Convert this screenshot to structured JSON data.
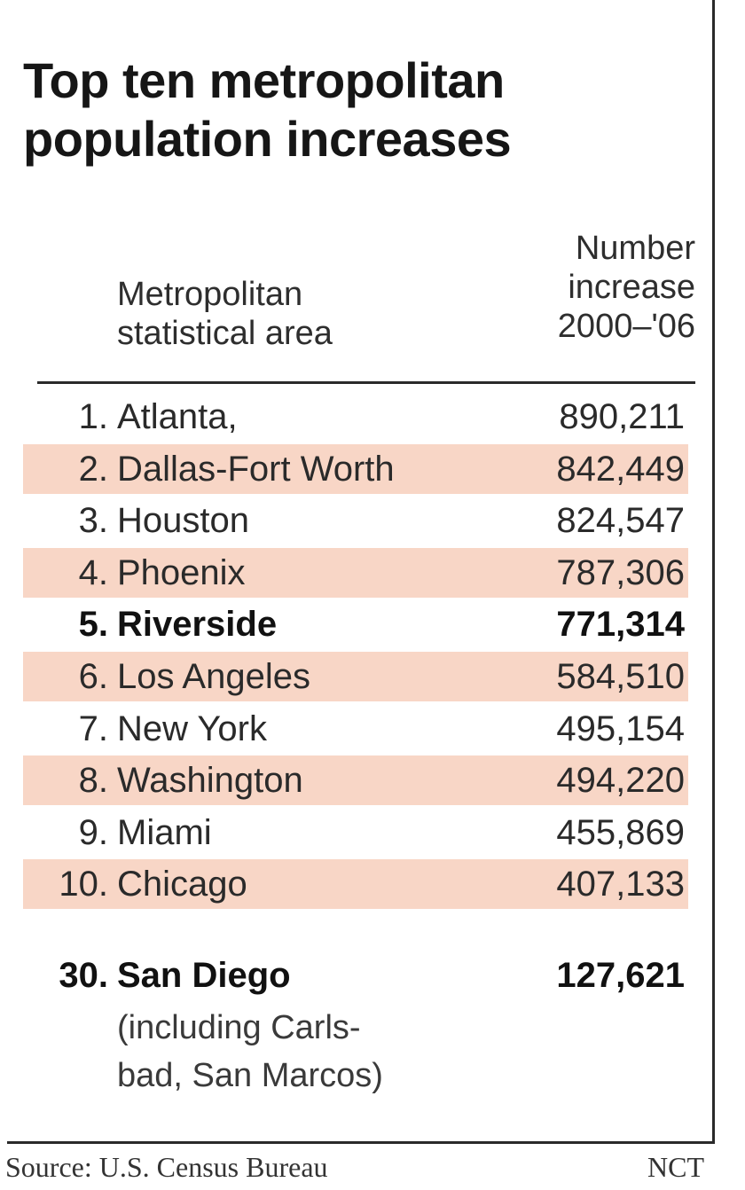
{
  "chart_data": {
    "type": "table",
    "title_lines": [
      "Top ten metropolitan",
      "population increases"
    ],
    "columns": [
      {
        "key": "area",
        "lines": [
          "Metropolitan",
          "statistical area"
        ]
      },
      {
        "key": "increase",
        "lines": [
          "Number",
          "increase",
          "2000–'06"
        ]
      }
    ],
    "rows": [
      {
        "rank": "1.",
        "area": "Atlanta,",
        "increase": "890,211",
        "value": 890211,
        "shaded": false,
        "bold": false
      },
      {
        "rank": "2.",
        "area": "Dallas-Fort Worth",
        "increase": "842,449",
        "value": 842449,
        "shaded": true,
        "bold": false
      },
      {
        "rank": "3.",
        "area": "Houston",
        "increase": "824,547",
        "value": 824547,
        "shaded": false,
        "bold": false
      },
      {
        "rank": "4.",
        "area": "Phoenix",
        "increase": "787,306",
        "value": 787306,
        "shaded": true,
        "bold": false
      },
      {
        "rank": "5.",
        "area": "Riverside",
        "increase": "771,314",
        "value": 771314,
        "shaded": false,
        "bold": true
      },
      {
        "rank": "6.",
        "area": "Los Angeles",
        "increase": "584,510",
        "value": 584510,
        "shaded": true,
        "bold": false
      },
      {
        "rank": "7.",
        "area": "New York",
        "increase": "495,154",
        "value": 495154,
        "shaded": false,
        "bold": false
      },
      {
        "rank": "8.",
        "area": "Washington",
        "increase": "494,220",
        "value": 494220,
        "shaded": true,
        "bold": false
      },
      {
        "rank": "9.",
        "area": "Miami",
        "increase": "455,869",
        "value": 455869,
        "shaded": false,
        "bold": false
      },
      {
        "rank": "10.",
        "area": "Chicago",
        "increase": "407,133",
        "value": 407133,
        "shaded": true,
        "bold": false
      }
    ],
    "featured_row": {
      "rank": "30.",
      "area": "San Diego",
      "increase": "127,621",
      "value": 127621,
      "note_lines": [
        "(including Carls-",
        "bad, San Marcos)"
      ]
    },
    "source": "Source: U.S. Census Bureau",
    "credit": "NCT",
    "colors": {
      "row_shading": "#f8d6c6",
      "text": "#1c1c1c",
      "rule": "#2a2a2a"
    }
  }
}
